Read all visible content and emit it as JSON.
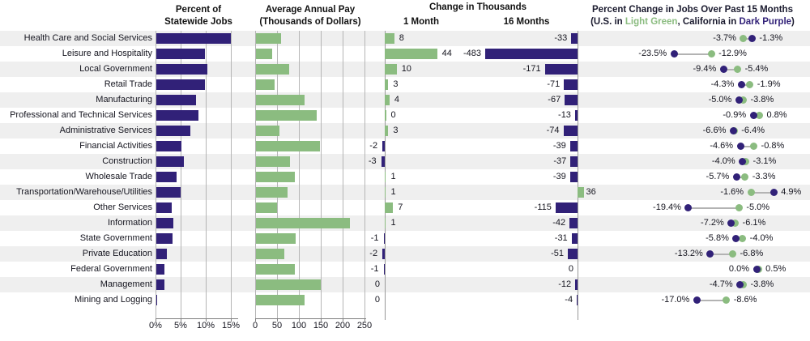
{
  "headers": {
    "panel1_line1": "Percent of",
    "panel1_line2": "Statewide Jobs",
    "panel2_line1": "Average Annual Pay",
    "panel2_line2": "(Thousands of Dollars)",
    "panel3_title": "Change in Thousands",
    "panel3_col1": "1 Month",
    "panel3_col2": "16 Months",
    "panel4_title": "Percent Change in Jobs Over Past 15 Months",
    "panel4_sub_pre": "(U.S. in ",
    "panel4_sub_green": "Light Green",
    "panel4_sub_mid": ", California in ",
    "panel4_sub_purple": "Dark Purple",
    "panel4_sub_post": ")"
  },
  "colors": {
    "dark_purple": "#312178",
    "light_green": "#8bbc80",
    "stripe": "#efefef",
    "gridline": "#b5b5b5",
    "axis": "#808080",
    "connector": "#b3b3b3",
    "text": "#15151f"
  },
  "categories": [
    "Health Care and Social Services",
    "Leisure and Hospitality",
    "Local Government",
    "Retail Trade",
    "Manufacturing",
    "Professional and Technical Services",
    "Administrative Services",
    "Financial Activities",
    "Construction",
    "Wholesale Trade",
    "Transportation/Warehouse/Utilities",
    "Other Services",
    "Information",
    "State Government",
    "Private Education",
    "Federal Government",
    "Management",
    "Mining and Logging"
  ],
  "chart_data": [
    {
      "type": "bar",
      "title": "Percent of Statewide Jobs",
      "orientation": "horizontal",
      "bar_color": "dark_purple",
      "values": [
        14.8,
        9.7,
        10.1,
        9.7,
        7.9,
        8.4,
        6.7,
        5.0,
        5.5,
        4.0,
        4.8,
        3.1,
        3.4,
        3.2,
        2.1,
        1.6,
        1.6,
        0.1
      ],
      "xlim": [
        0,
        15
      ],
      "tick_values": [
        0,
        5,
        10,
        15
      ],
      "tick_labels": [
        "0%",
        "5%",
        "10%",
        "15%"
      ],
      "grid": true
    },
    {
      "type": "bar",
      "title": "Average Annual Pay (Thousands of Dollars)",
      "orientation": "horizontal",
      "bar_color": "light_green",
      "values": [
        57,
        37,
        75,
        43,
        111,
        139,
        54,
        147,
        77,
        88,
        72,
        49,
        214,
        90,
        65,
        88,
        148,
        112
      ],
      "xlim": [
        0,
        250
      ],
      "tick_values": [
        0,
        50,
        100,
        150,
        200,
        250
      ],
      "tick_labels": [
        "0",
        "50",
        "100",
        "150",
        "200",
        "250"
      ],
      "grid": true
    },
    {
      "type": "bar",
      "title": "Change in Thousands",
      "orientation": "horizontal",
      "note": "positive bars light green, negative bars dark purple, value labels beside bars",
      "series": [
        {
          "name": "1 Month",
          "values": [
            8,
            44,
            10,
            3,
            4,
            0,
            3,
            -2,
            -3,
            1,
            1,
            7,
            1,
            -1,
            -2,
            -1,
            0,
            0
          ],
          "label_side": [
            "r",
            "r",
            "r",
            "r",
            "r",
            "r",
            "r",
            "l",
            "l",
            "r",
            "r",
            "r",
            "r",
            "l",
            "l",
            "l",
            "l",
            "l"
          ]
        },
        {
          "name": "16 Months",
          "values": [
            -33,
            -483,
            -171,
            -71,
            -67,
            -13,
            -74,
            -39,
            -37,
            -39,
            36,
            -115,
            -42,
            -31,
            -51,
            0,
            -12,
            -4
          ]
        }
      ]
    },
    {
      "type": "scatter",
      "title": "Percent Change in Jobs Over Past 15 Months",
      "legend": [
        {
          "name": "U.S.",
          "color": "light_green"
        },
        {
          "name": "California",
          "color": "dark_purple"
        }
      ],
      "unit": "%",
      "series": [
        {
          "name": "U.S.",
          "color": "light_green",
          "values": [
            -3.7,
            -12.9,
            -5.4,
            -1.9,
            -3.8,
            0.8,
            -6.4,
            -0.8,
            -3.1,
            -3.3,
            -1.6,
            -5.0,
            -6.1,
            -4.0,
            -6.8,
            0.5,
            -3.8,
            -8.6
          ]
        },
        {
          "name": "California",
          "color": "dark_purple",
          "values": [
            -1.3,
            -23.5,
            -9.4,
            -4.3,
            -5.0,
            -0.9,
            -6.6,
            -4.6,
            -4.0,
            -5.7,
            4.9,
            -19.4,
            -7.2,
            -5.8,
            -13.2,
            0.0,
            -4.7,
            -17.0
          ]
        }
      ]
    }
  ]
}
